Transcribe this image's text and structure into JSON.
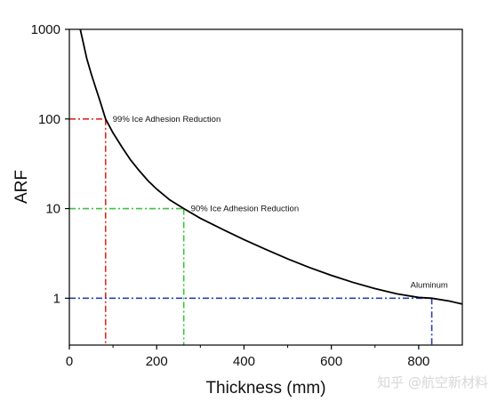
{
  "chart_data": {
    "type": "line",
    "title": "",
    "xlabel": "Thickness (mm)",
    "ylabel": "ARF",
    "xlim": [
      0,
      900
    ],
    "ylim": [
      0.3,
      1000
    ],
    "y_scale": "log",
    "grid": false,
    "x_ticks": [
      0,
      200,
      400,
      600,
      800
    ],
    "x_tick_labels": [
      "0",
      "200",
      "400",
      "600",
      "800"
    ],
    "y_ticks": [
      1,
      10,
      100,
      1000
    ],
    "y_tick_labels": [
      "1",
      "10",
      "100",
      "1000"
    ],
    "series": [
      {
        "color": "#000000",
        "x": [
          25,
          30,
          40,
          50,
          60,
          70,
          83,
          100,
          120,
          140,
          160,
          180,
          200,
          230,
          262,
          300,
          350,
          400,
          450,
          500,
          550,
          600,
          650,
          700,
          750,
          800,
          830,
          870,
          900
        ],
        "y": [
          1000,
          780,
          470,
          320,
          225,
          160,
          100,
          70,
          49,
          35,
          26.5,
          20.5,
          16.5,
          12.5,
          10,
          7.8,
          5.9,
          4.5,
          3.5,
          2.75,
          2.2,
          1.8,
          1.5,
          1.28,
          1.12,
          1.02,
          1.0,
          0.93,
          0.86
        ]
      }
    ],
    "reference_lines": [
      {
        "x": 83,
        "y": 100,
        "color": "#e0281e",
        "label": "99% Ice Adhesion Reduction"
      },
      {
        "x": 262,
        "y": 10,
        "color": "#3dc43d",
        "label": "90% Ice Adhesion Reduction"
      },
      {
        "x": 830,
        "y": 1,
        "color": "#2a3fb5",
        "label": "Aluminum"
      }
    ]
  },
  "watermark": "知乎 @航空新材料"
}
